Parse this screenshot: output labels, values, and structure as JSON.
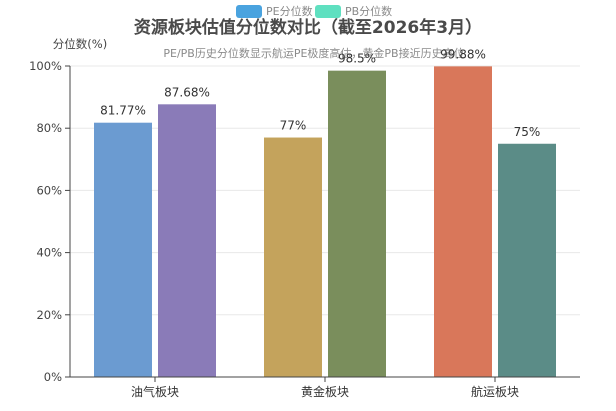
{
  "chart_data": {
    "type": "bar",
    "title": "资源板块估值分位数对比（截至2026年3月）",
    "subtitle": "PE/PB历史分位数显示航运PE极度高估，黄金PB接近历史高位",
    "ylabel": "分位数(%)",
    "ylim": [
      0,
      100
    ],
    "yticks": [
      "0%",
      "20%",
      "40%",
      "60%",
      "80%",
      "100%"
    ],
    "legend_position": "top-center",
    "categories": [
      "油气板块",
      "黄金板块",
      "航运板块"
    ],
    "series": [
      {
        "name": "PE分位数",
        "legend_color": "#4aa3df",
        "values": [
          81.77,
          77,
          99.88
        ],
        "labels": [
          "81.77%",
          "77%",
          "99.88%"
        ],
        "colors": [
          "#6b9bd1",
          "#c4a35c",
          "#d9775a"
        ]
      },
      {
        "name": "PB分位数",
        "legend_color": "#5fe0c0",
        "values": [
          87.68,
          98.5,
          75
        ],
        "labels": [
          "87.68%",
          "98.5%",
          "75%"
        ],
        "colors": [
          "#8a7bb8",
          "#7a8e5c",
          "#5b8c87"
        ]
      }
    ]
  }
}
